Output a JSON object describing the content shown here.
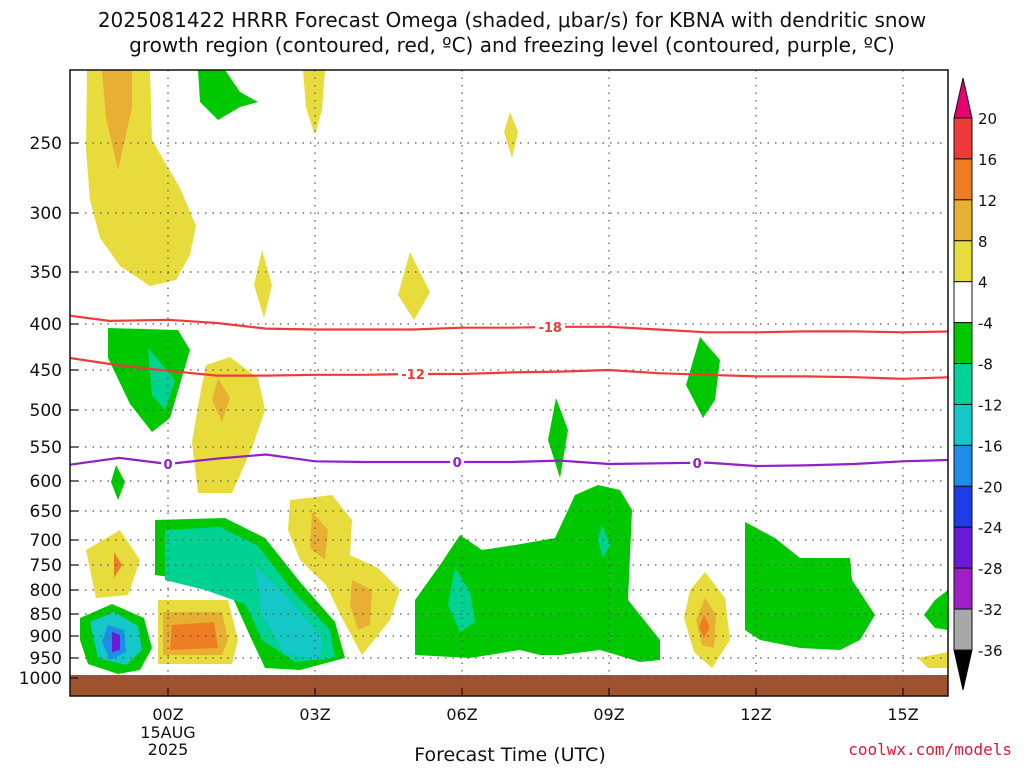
{
  "title": {
    "line1": "2025081422 HRRR Forecast Omega (shaded, μbar/s) for KBNA with dendritic snow",
    "line2": "growth region (contoured, red, ºC) and freezing level (contoured, purple, ºC)"
  },
  "credit": "coolwx.com/models",
  "chart_data": {
    "type": "contour",
    "xlabel": "Forecast Time (UTC)",
    "x_ticks": [
      {
        "hour": 0,
        "label": "00Z",
        "sub": [
          "15AUG",
          "2025"
        ]
      },
      {
        "hour": 3,
        "label": "03Z"
      },
      {
        "hour": 6,
        "label": "06Z"
      },
      {
        "hour": 9,
        "label": "09Z"
      },
      {
        "hour": 12,
        "label": "12Z"
      },
      {
        "hour": 15,
        "label": "15Z"
      }
    ],
    "xlim": [
      -2,
      16
    ],
    "y_ticks": [
      250,
      300,
      350,
      400,
      450,
      500,
      550,
      600,
      650,
      700,
      750,
      800,
      850,
      900,
      950,
      1000
    ],
    "ylim": [
      1000,
      200
    ],
    "colorbar": {
      "labels": [
        "20",
        "16",
        "12",
        "8",
        "4",
        "-4",
        "-8",
        "-12",
        "-16",
        "-20",
        "-24",
        "-28",
        "-32",
        "-36"
      ],
      "colors": [
        "#e8006e",
        "#f03a3a",
        "#ee7d22",
        "#e8b032",
        "#e8dc3c",
        "#ffffff",
        "#00c800",
        "#00d294",
        "#14c8c8",
        "#1e8ce8",
        "#1e3ce8",
        "#6a1ad8",
        "#a01ec8",
        "#a8a8a8",
        "#000000"
      ]
    },
    "isotherms": [
      {
        "label": "-18",
        "color": "#f03a3a",
        "points": [
          [
            -2,
            392
          ],
          [
            -1.2,
            397
          ],
          [
            0,
            396
          ],
          [
            1,
            399
          ],
          [
            2,
            405
          ],
          [
            3,
            406
          ],
          [
            4,
            406
          ],
          [
            5,
            406
          ],
          [
            6,
            404
          ],
          [
            7,
            404
          ],
          [
            8,
            403
          ],
          [
            9,
            403
          ],
          [
            10,
            406
          ],
          [
            11,
            409
          ],
          [
            12,
            409
          ],
          [
            13,
            408
          ],
          [
            14,
            408
          ],
          [
            15,
            409
          ],
          [
            16,
            408
          ]
        ],
        "label_at": 7.8
      },
      {
        "label": "-12",
        "color": "#f03a3a",
        "points": [
          [
            -2,
            437
          ],
          [
            -1,
            445
          ],
          [
            0,
            451
          ],
          [
            1,
            457
          ],
          [
            2,
            457
          ],
          [
            3,
            456
          ],
          [
            4,
            456
          ],
          [
            5,
            455
          ],
          [
            6,
            455
          ],
          [
            7,
            453
          ],
          [
            8,
            452
          ],
          [
            9,
            450
          ],
          [
            10,
            454
          ],
          [
            11,
            456
          ],
          [
            12,
            458
          ],
          [
            13,
            458
          ],
          [
            14,
            459
          ],
          [
            15,
            461
          ],
          [
            16,
            459
          ]
        ],
        "label_at": 5
      },
      {
        "label": "0",
        "color": "#9020c8",
        "points": [
          [
            -2,
            576
          ],
          [
            -1,
            566
          ],
          [
            0,
            575
          ],
          [
            1,
            567
          ],
          [
            2,
            561
          ],
          [
            3,
            571
          ],
          [
            4,
            572
          ],
          [
            5,
            572
          ],
          [
            6,
            572
          ],
          [
            7,
            572
          ],
          [
            8,
            570
          ],
          [
            9,
            575
          ],
          [
            10,
            574
          ],
          [
            11,
            573
          ],
          [
            12,
            578
          ],
          [
            13,
            577
          ],
          [
            14,
            575
          ],
          [
            15,
            571
          ],
          [
            16,
            569
          ]
        ],
        "label_at_list": [
          0,
          5.9,
          10.8
        ]
      }
    ]
  }
}
